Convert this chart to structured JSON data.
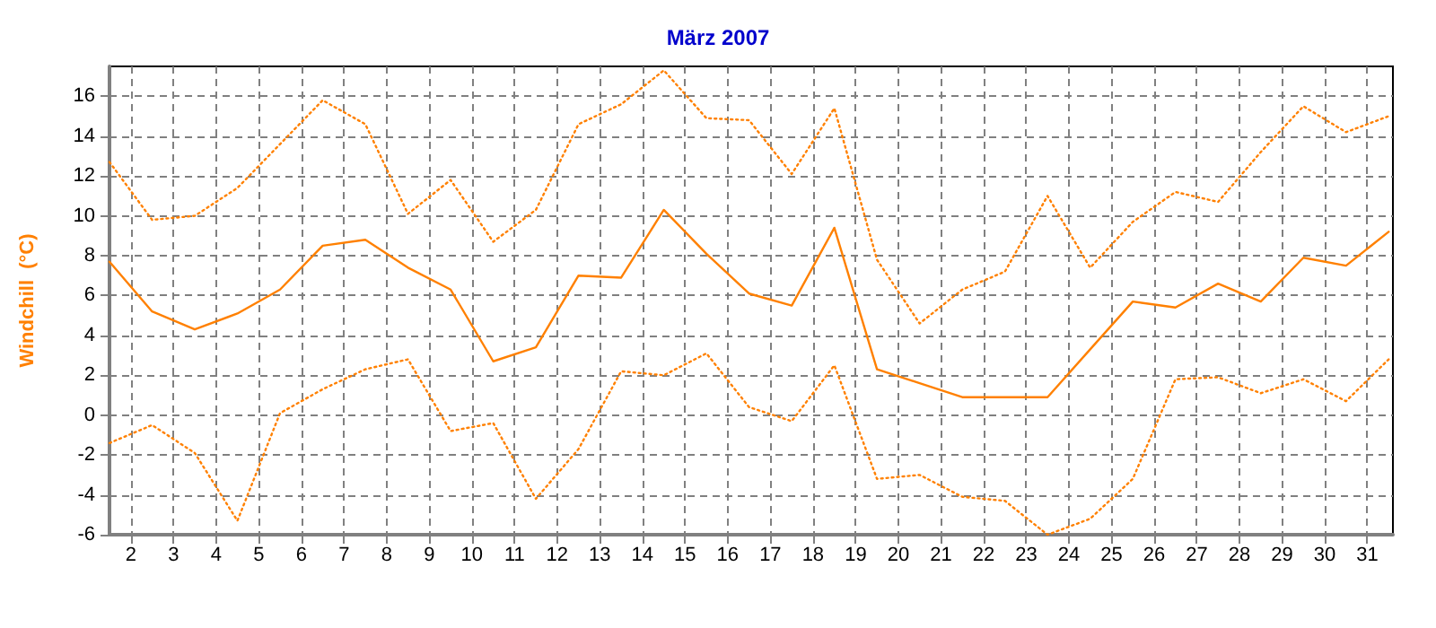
{
  "chart_data": {
    "type": "line",
    "title": "März 2007",
    "ylabel": "Windchill  (°C)",
    "x": [
      1.5,
      2.5,
      3.5,
      4.5,
      5.5,
      6.5,
      7.5,
      8.5,
      9.5,
      10.5,
      11.5,
      12.5,
      13.5,
      14.5,
      15.5,
      16.5,
      17.5,
      18.5,
      19.5,
      20.5,
      21.5,
      22.5,
      23.5,
      24.5,
      25.5,
      26.5,
      27.5,
      28.5,
      29.5,
      30.5,
      31.5
    ],
    "series": [
      {
        "color": "#ff8000",
        "line_style": "dotted",
        "values": [
          12.7,
          9.8,
          10.0,
          11.4,
          13.6,
          15.8,
          14.6,
          10.1,
          11.8,
          8.7,
          10.3,
          14.6,
          15.6,
          17.3,
          14.9,
          14.8,
          12.1,
          15.4,
          7.8,
          4.6,
          6.3,
          7.2,
          11.0,
          7.4,
          9.7,
          11.2,
          10.7,
          13.2,
          15.5,
          14.2,
          15.0
        ]
      },
      {
        "color": "#ff8000",
        "line_style": "solid",
        "values": [
          7.7,
          5.2,
          4.3,
          5.1,
          6.3,
          8.5,
          8.8,
          7.4,
          6.3,
          2.7,
          3.4,
          7.0,
          6.9,
          10.3,
          8.1,
          6.1,
          5.5,
          9.4,
          2.3,
          1.6,
          0.9,
          0.9,
          0.9,
          3.3,
          5.7,
          5.4,
          6.6,
          5.7,
          7.9,
          7.5,
          9.2
        ]
      },
      {
        "color": "#ff8000",
        "line_style": "dotted",
        "values": [
          -1.4,
          -0.5,
          -1.9,
          -5.3,
          0.1,
          1.3,
          2.3,
          2.8,
          -0.8,
          -0.4,
          -4.2,
          -1.7,
          2.2,
          2.0,
          3.1,
          0.4,
          -0.3,
          2.5,
          -3.2,
          -3.0,
          -4.1,
          -4.3,
          -6.0,
          -5.2,
          -3.2,
          1.8,
          1.9,
          1.1,
          1.8,
          0.7,
          2.8
        ]
      }
    ],
    "xlim": [
      1.5,
      31.6
    ],
    "xticks": [
      2,
      3,
      4,
      5,
      6,
      7,
      8,
      9,
      10,
      11,
      12,
      13,
      14,
      15,
      16,
      17,
      18,
      19,
      20,
      21,
      22,
      23,
      24,
      25,
      26,
      27,
      28,
      29,
      30,
      31
    ],
    "ylim": [
      -6,
      17.5
    ],
    "yticks": [
      -6,
      -4,
      -2,
      0,
      2,
      4,
      6,
      8,
      10,
      12,
      14,
      16
    ],
    "grid": true,
    "marker": "none"
  }
}
